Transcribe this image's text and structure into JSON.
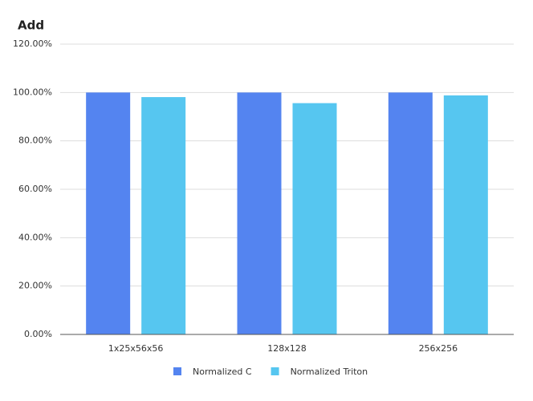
{
  "chart_data": {
    "type": "bar",
    "title": "Add",
    "categories": [
      "1x25x56x56",
      "128x128",
      "256x256"
    ],
    "series": [
      {
        "name": "Normalized C",
        "color": "#5484f0",
        "values": [
          100,
          100,
          100
        ]
      },
      {
        "name": "Normalized Triton",
        "color": "#56c6f0",
        "values": [
          98.1,
          95.6,
          98.8
        ]
      }
    ],
    "ylim": [
      0,
      120
    ],
    "yticks": [
      {
        "value": 0,
        "label": "0.00%"
      },
      {
        "value": 20,
        "label": "20.00%"
      },
      {
        "value": 40,
        "label": "40.00%"
      },
      {
        "value": 60,
        "label": "60.00%"
      },
      {
        "value": 80,
        "label": "80.00%"
      },
      {
        "value": 100,
        "label": "100.00%"
      },
      {
        "value": 120,
        "label": "120.00%"
      }
    ],
    "grid": true,
    "legend": "bottom"
  }
}
